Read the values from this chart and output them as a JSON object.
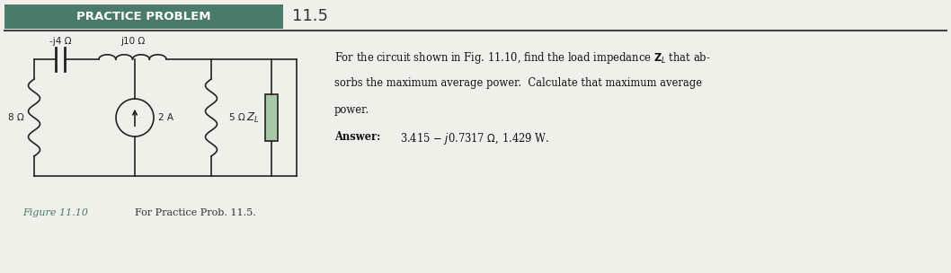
{
  "title_box_text": "PRACTICE PROBLEM",
  "title_number": "11.5",
  "header_box_color": "#4a7a6a",
  "header_text_color": "#ffffff",
  "header_number_color": "#333333",
  "background_color": "#f0f0eb",
  "fig_width": 10.58,
  "fig_height": 3.04,
  "circuit_labels": {
    "cap": "-j4 Ω",
    "ind": "j10 Ω",
    "r8": "8 Ω",
    "cs": "2 A",
    "r5": "5 Ω",
    "zl": "Z"
  },
  "problem_text_line1": "For the circuit shown in Fig. 11.10, find the load impedance ",
  "problem_text_zl": "$\\mathbf{Z}_{L}$",
  "problem_text_rest": " that ab-",
  "problem_text_line2": "sorbs the maximum average power.  Calculate that maximum average",
  "problem_text_line3": "power.",
  "answer_label": "Answer:",
  "answer_text": "3.415 – j0.7317 Ω, 1.429 W.",
  "figure_label": "Figure 11.10",
  "figure_caption": "For Practice Prob. 11.5.",
  "line_color": "#222222",
  "zl_fill": "#a8c8a8",
  "figure_label_color": "#4a7a6a"
}
